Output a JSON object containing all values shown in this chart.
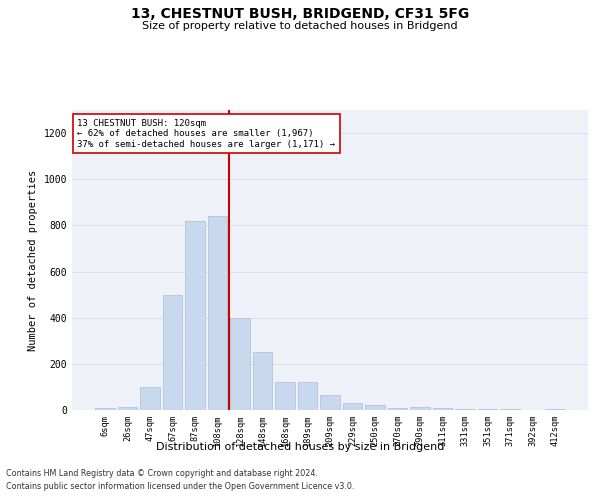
{
  "title": "13, CHESTNUT BUSH, BRIDGEND, CF31 5FG",
  "subtitle": "Size of property relative to detached houses in Bridgend",
  "xlabel": "Distribution of detached houses by size in Bridgend",
  "ylabel": "Number of detached properties",
  "bar_color": "#c8d9ee",
  "bar_edgecolor": "#aabcd8",
  "grid_color": "#d8dfe8",
  "background_color": "#eef2f8",
  "annotation_line_color": "#cc0000",
  "annotation_box_edgecolor": "#cc0000",
  "annotation_text_line1": "13 CHESTNUT BUSH: 120sqm",
  "annotation_text_line2": "← 62% of detached houses are smaller (1,967)",
  "annotation_text_line3": "37% of semi-detached houses are larger (1,171) →",
  "categories": [
    "6sqm",
    "26sqm",
    "47sqm",
    "67sqm",
    "87sqm",
    "108sqm",
    "128sqm",
    "148sqm",
    "168sqm",
    "189sqm",
    "209sqm",
    "229sqm",
    "250sqm",
    "270sqm",
    "290sqm",
    "311sqm",
    "331sqm",
    "351sqm",
    "371sqm",
    "392sqm",
    "412sqm"
  ],
  "values": [
    8,
    15,
    100,
    500,
    820,
    840,
    400,
    250,
    120,
    120,
    65,
    30,
    20,
    10,
    12,
    10,
    5,
    3,
    3,
    2,
    3
  ],
  "ylim": [
    0,
    1300
  ],
  "yticks": [
    0,
    200,
    400,
    600,
    800,
    1000,
    1200
  ],
  "footnote_line1": "Contains HM Land Registry data © Crown copyright and database right 2024.",
  "footnote_line2": "Contains public sector information licensed under the Open Government Licence v3.0."
}
